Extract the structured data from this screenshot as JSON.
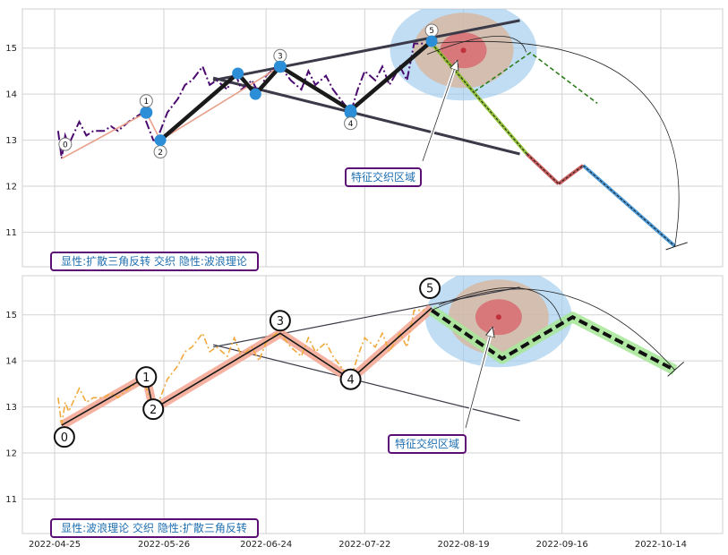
{
  "chart_data": [
    {
      "type": "line",
      "panel": "top",
      "ylim": [
        10.25,
        15.85
      ],
      "yticks": [
        11,
        12,
        13,
        14,
        15
      ],
      "grid": true,
      "legend_text": "显性:扩散三角反转 交织 隐性:波浪理论",
      "zone_label": "特征交织区域",
      "price_series": {
        "x": [
          "2022-04-26",
          "2022-04-27",
          "2022-04-28",
          "2022-04-29",
          "2022-05-02",
          "2022-05-04",
          "2022-05-06",
          "2022-05-09",
          "2022-05-11",
          "2022-05-13",
          "2022-05-16",
          "2022-05-18",
          "2022-05-20",
          "2022-05-23",
          "2022-05-24",
          "2022-05-27",
          "2022-05-30",
          "2022-06-01",
          "2022-06-03",
          "2022-06-06",
          "2022-06-08",
          "2022-06-10",
          "2022-06-13",
          "2022-06-15",
          "2022-06-17",
          "2022-06-20",
          "2022-06-22",
          "2022-06-24",
          "2022-06-27",
          "2022-06-29",
          "2022-07-01",
          "2022-07-04",
          "2022-07-06",
          "2022-07-08",
          "2022-07-11",
          "2022-07-13",
          "2022-07-15",
          "2022-07-18",
          "2022-07-20",
          "2022-07-22",
          "2022-07-25",
          "2022-07-27",
          "2022-07-29",
          "2022-08-01",
          "2022-08-03",
          "2022-08-05",
          "2022-08-08"
        ],
        "y": [
          13.2,
          12.6,
          13.1,
          12.9,
          13.4,
          13.1,
          13.2,
          13.2,
          13.3,
          13.2,
          13.4,
          13.5,
          13.6,
          13.0,
          13.0,
          13.6,
          13.9,
          14.2,
          14.3,
          14.6,
          14.2,
          14.3,
          14.1,
          14.5,
          14.1,
          14.3,
          14.0,
          14.4,
          14.6,
          14.5,
          14.3,
          14.1,
          14.5,
          14.2,
          14.4,
          14.1,
          13.9,
          13.6,
          14.1,
          14.5,
          14.3,
          14.6,
          14.2,
          14.6,
          14.3,
          15.1,
          15.1
        ]
      },
      "wave_points": [
        {
          "label": "0",
          "x": "2022-04-27",
          "y": 12.6
        },
        {
          "label": "1",
          "x": "2022-05-21",
          "y": 13.6
        },
        {
          "label": "2",
          "x": "2022-05-25",
          "y": 13.0
        },
        {
          "label": "3",
          "x": "2022-06-28",
          "y": 14.6
        },
        {
          "label": "4",
          "x": "2022-07-18",
          "y": 13.6
        },
        {
          "label": "5",
          "x": "2022-08-10",
          "y": 15.15
        }
      ],
      "black_path": [
        {
          "x": "2022-05-25",
          "y": 13.0
        },
        {
          "x": "2022-06-16",
          "y": 14.45
        },
        {
          "x": "2022-06-21",
          "y": 14.0
        },
        {
          "x": "2022-06-28",
          "y": 14.6
        },
        {
          "x": "2022-07-18",
          "y": 13.65
        },
        {
          "x": "2022-08-10",
          "y": 15.15
        }
      ],
      "upper_trend": [
        {
          "x": "2022-06-09",
          "y": 14.3
        },
        {
          "x": "2022-09-04",
          "y": 15.6
        }
      ],
      "lower_trend": [
        {
          "x": "2022-06-09",
          "y": 14.35
        },
        {
          "x": "2022-09-04",
          "y": 12.7
        }
      ],
      "projection_green": [
        {
          "x": "2022-08-10",
          "y": 15.1
        },
        {
          "x": "2022-08-22",
          "y": 14.05
        },
        {
          "x": "2022-09-07",
          "y": 14.9
        },
        {
          "x": "2022-09-26",
          "y": 13.8
        }
      ],
      "projection_path": [
        {
          "x": "2022-08-10",
          "y": 15.1
        },
        {
          "x": "2022-09-06",
          "y": 12.7
        },
        {
          "x": "2022-09-15",
          "y": 12.05
        },
        {
          "x": "2022-09-22",
          "y": 12.45
        },
        {
          "x": "2022-10-18",
          "y": 10.7
        }
      ],
      "zone_center": {
        "x": "2022-08-19",
        "y": 14.95
      }
    },
    {
      "type": "line",
      "panel": "bottom",
      "ylim": [
        10.25,
        15.85
      ],
      "yticks": [
        11,
        12,
        13,
        14,
        15
      ],
      "xticks": [
        "2022-04-25",
        "2022-05-26",
        "2022-06-24",
        "2022-07-22",
        "2022-08-19",
        "2022-09-16",
        "2022-10-14"
      ],
      "grid": true,
      "legend_text": "显性:波浪理论 交织 隐性:扩散三角反转",
      "zone_label": "特征交织区域",
      "price_series": {
        "x": [
          "2022-04-26",
          "2022-04-27",
          "2022-04-28",
          "2022-04-29",
          "2022-05-02",
          "2022-05-04",
          "2022-05-06",
          "2022-05-09",
          "2022-05-11",
          "2022-05-13",
          "2022-05-16",
          "2022-05-18",
          "2022-05-20",
          "2022-05-23",
          "2022-05-24",
          "2022-05-27",
          "2022-05-30",
          "2022-06-01",
          "2022-06-03",
          "2022-06-06",
          "2022-06-08",
          "2022-06-10",
          "2022-06-13",
          "2022-06-15",
          "2022-06-17",
          "2022-06-20",
          "2022-06-22",
          "2022-06-24",
          "2022-06-27",
          "2022-06-29",
          "2022-07-01",
          "2022-07-04",
          "2022-07-06",
          "2022-07-08",
          "2022-07-11",
          "2022-07-13",
          "2022-07-15",
          "2022-07-18",
          "2022-07-20",
          "2022-07-22",
          "2022-07-25",
          "2022-07-27",
          "2022-07-29",
          "2022-08-01",
          "2022-08-03",
          "2022-08-05",
          "2022-08-08"
        ],
        "y": [
          13.2,
          12.6,
          13.1,
          12.9,
          13.4,
          13.1,
          13.2,
          13.2,
          13.3,
          13.2,
          13.4,
          13.5,
          13.6,
          13.0,
          13.0,
          13.6,
          13.9,
          14.2,
          14.3,
          14.6,
          14.2,
          14.3,
          14.1,
          14.5,
          14.1,
          14.3,
          14.0,
          14.4,
          14.6,
          14.5,
          14.3,
          14.1,
          14.5,
          14.2,
          14.4,
          14.1,
          13.9,
          13.6,
          14.1,
          14.5,
          14.3,
          14.6,
          14.2,
          14.6,
          14.3,
          15.1,
          15.1
        ]
      },
      "wave_points": [
        {
          "label": "0",
          "x": "2022-04-27",
          "y": 12.6
        },
        {
          "label": "1",
          "x": "2022-05-21",
          "y": 13.65
        },
        {
          "label": "2",
          "x": "2022-05-23",
          "y": 12.95
        },
        {
          "label": "3",
          "x": "2022-06-28",
          "y": 14.6
        },
        {
          "label": "4",
          "x": "2022-07-18",
          "y": 13.6
        },
        {
          "label": "5",
          "x": "2022-08-10",
          "y": 15.15
        }
      ],
      "upper_trend": [
        {
          "x": "2022-06-09",
          "y": 14.3
        },
        {
          "x": "2022-09-04",
          "y": 15.6
        }
      ],
      "lower_trend": [
        {
          "x": "2022-06-09",
          "y": 14.35
        },
        {
          "x": "2022-09-04",
          "y": 12.7
        }
      ],
      "projection_dashed": [
        {
          "x": "2022-08-10",
          "y": 15.1
        },
        {
          "x": "2022-08-30",
          "y": 14.05
        },
        {
          "x": "2022-09-19",
          "y": 14.95
        },
        {
          "x": "2022-10-18",
          "y": 13.8
        }
      ],
      "zone_center": {
        "x": "2022-08-29",
        "y": 14.95
      }
    }
  ],
  "colors": {
    "zone_outer": "#9ecbec",
    "zone_mid": "#d6b9a2",
    "zone_inner": "#d9676e",
    "zone_dot": "#c0313a",
    "price_top": "#4b0a70",
    "price_bottom": "#f0a93c",
    "wave_line_top": "#e8a08a",
    "wave_band_bottom": "#f4a58f",
    "legend_border": "#5b0f74",
    "legend_text": "#2a80b9",
    "trend": "#3a3a48",
    "projection_green": "#2f7d1e",
    "projection_green_fill": "#a9e79b",
    "seg_olive": "#8cbf2a",
    "seg_red": "#c04a4a",
    "seg_blue": "#3b8fd1",
    "node_blue": "#2b8ed6"
  }
}
